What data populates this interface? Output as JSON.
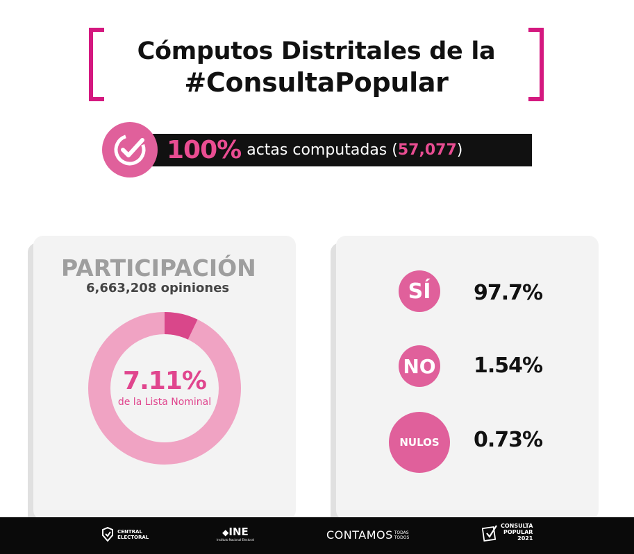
{
  "header": {
    "title_line1": "Cómputos Distritales de la",
    "title_line2": "#ConsultaPopular"
  },
  "banner": {
    "percent": "100%",
    "label_before": "actas computadas (",
    "count": "57,077",
    "label_after": ")",
    "icon": "check-circle-icon"
  },
  "participation": {
    "title": "PARTICIPACIÓN",
    "subtitle": "6,663,208 opiniones",
    "percent_label": "7.11%",
    "percent_value": 7.11,
    "caption": "de la Lista Nominal"
  },
  "results": [
    {
      "label": "SÍ",
      "value": "97.7%"
    },
    {
      "label": "NO",
      "value": "1.54%"
    },
    {
      "label": "NULOS",
      "value": "0.73%"
    }
  ],
  "footer": {
    "central_electoral_line1": "CENTRAL",
    "central_electoral_line2": "ELECTORAL",
    "ine": "INE",
    "ine_sub": "Instituto Nacional Electoral",
    "contamos": "CONTAMOS",
    "contamos_small1": "TODAS",
    "contamos_small2": "TODOS",
    "consulta_line1": "CONSULTA",
    "consulta_line2": "POPULAR",
    "consulta_year": "2021"
  },
  "colors": {
    "magenta": "#d4187f",
    "pink": "#e0609b",
    "light_pink": "#f0a3c3",
    "dark_pink": "#d9478a"
  }
}
